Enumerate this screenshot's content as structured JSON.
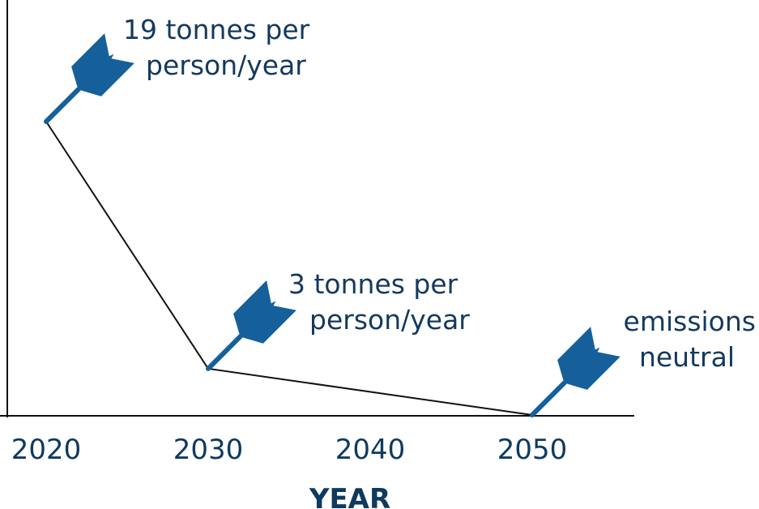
{
  "chart_data": {
    "type": "line",
    "title": "",
    "xlabel": "YEAR",
    "ylabel": "",
    "x_ticks": [
      "2020",
      "2030",
      "2040",
      "2050"
    ],
    "xlim": [
      2020,
      2055
    ],
    "series": [
      {
        "x": [
          2020,
          2030,
          2050
        ],
        "values": [
          19,
          3,
          0
        ]
      }
    ],
    "annotations": [
      {
        "x": 2020,
        "y": 19,
        "lines": [
          "19 tonnes per",
          "person/year"
        ]
      },
      {
        "x": 2030,
        "y": 3,
        "lines": [
          "3 tonnes per",
          "person/year"
        ]
      },
      {
        "x": 2050,
        "y": 0,
        "lines": [
          "emissions",
          "neutral"
        ],
        "align": "right"
      }
    ],
    "grid": false,
    "colors": {
      "line": "#111111",
      "marker": "#15609a",
      "text": "#0e3a5e",
      "axis": "#111111"
    }
  }
}
